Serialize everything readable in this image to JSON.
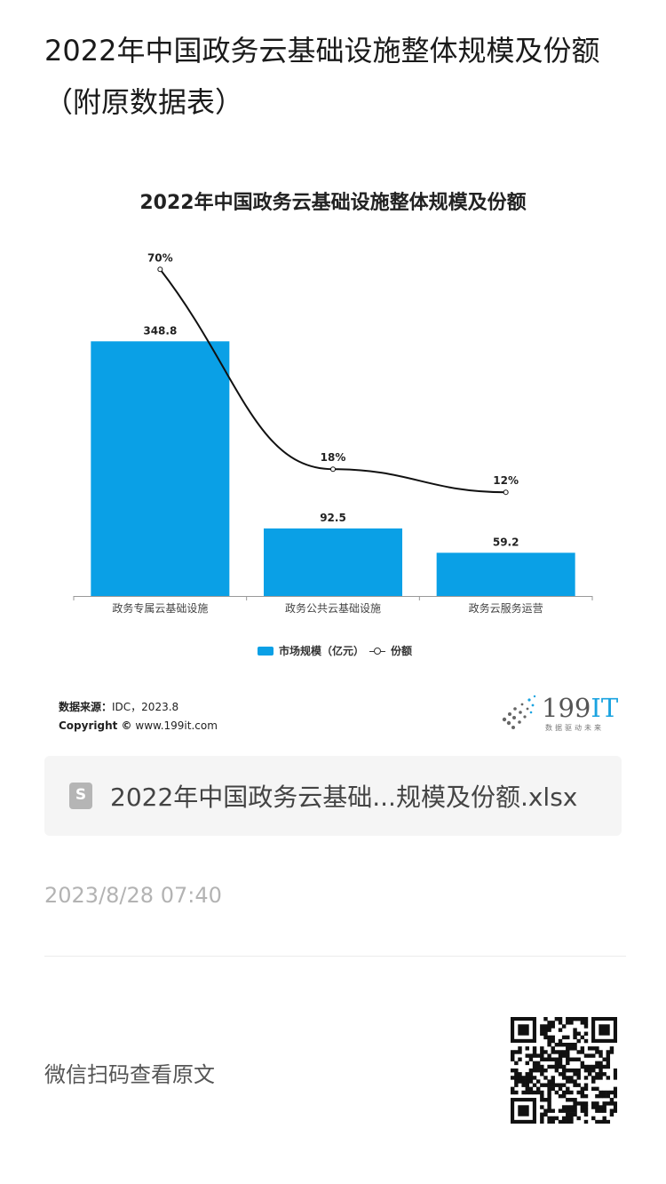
{
  "page": {
    "title": "2022年中国政务云基础设施整体规模及份额（附原数据表）",
    "file_name": "2022年中国政务云基础...规模及份额.xlsx",
    "date": "2023/8/28 07:40",
    "scan_text": "微信扫码查看原文"
  },
  "chart_data": {
    "type": "bar",
    "title": "2022年中国政务云基础设施整体规模及份额",
    "categories": [
      "政务专属云基础设施",
      "政务公共云基础设施",
      "政务云服务运营"
    ],
    "series": [
      {
        "name": "市场规模（亿元）",
        "type": "bar",
        "values": [
          348.8,
          92.5,
          59.2
        ],
        "labels": [
          "348.8",
          "92.5",
          "59.2"
        ],
        "color": "#0aa0e6"
      },
      {
        "name": "份额",
        "type": "line",
        "values": [
          70,
          18,
          12
        ],
        "labels": [
          "70%",
          "18%",
          "12%"
        ],
        "color": "#111111"
      }
    ],
    "bar_ylim": [
      0,
      500
    ],
    "line_ylim": [
      -15,
      80
    ],
    "legend_position": "bottom",
    "grid": false
  },
  "footer": {
    "source_label": "数据来源：",
    "source_value": "IDC，2023.8",
    "copyright_label": "Copyright ©",
    "copyright_value": "www.199it.com",
    "logo_number": "199",
    "logo_it": "IT",
    "logo_tagline": "数据驱动未来"
  },
  "colors": {
    "accent": "#0aa0e6"
  }
}
